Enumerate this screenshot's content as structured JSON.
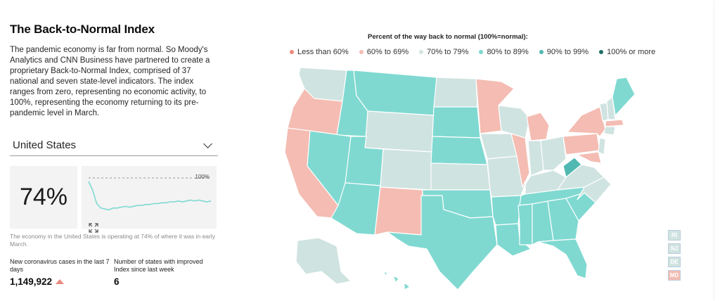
{
  "title": "The Back-to-Normal Index",
  "description": "The pandemic economy is far from normal. So Moody's Analytics and CNN Business have partnered to create a proprietary Back-to-Normal Index, comprised of 37 national and seven state-level indicators. The index ranges from zero, representing no economic activity, to 100%, representing the economy returning to its pre-pandemic level in March.",
  "selector": {
    "value": "United States",
    "icon": "chevron-down-icon"
  },
  "index": {
    "percent": "74%",
    "spark_ref_label": "100%",
    "spark_series": [
      96,
      86,
      71,
      66,
      65,
      64,
      66,
      66,
      67,
      68,
      67,
      68,
      69,
      69,
      70,
      70,
      71,
      71,
      72,
      72,
      73,
      73,
      74,
      73,
      74,
      75,
      74,
      75,
      74,
      73,
      74
    ],
    "expand_icon": "expand-icon"
  },
  "caption": "The economy in the United States is operating at 74% of where it was in early March.",
  "metrics": {
    "cases_label": "New coronavirus cases in the last 7 days",
    "cases_value": "1,149,922",
    "cases_trend_icon": "triangle-up-icon",
    "improved_label": "Number of states with improved Index since last week",
    "improved_value": "6"
  },
  "map": {
    "title": "Percent of the way back to normal (100%=normal):",
    "legend": [
      {
        "label": "Less than 60%",
        "color": "#ef8a7b"
      },
      {
        "label": "60% to 69%",
        "color": "#f4bcb2"
      },
      {
        "label": "70% to 79%",
        "color": "#cfe3e0"
      },
      {
        "label": "80% to 89%",
        "color": "#7fd9d1"
      },
      {
        "label": "90% to 99%",
        "color": "#4fb9b1"
      },
      {
        "label": "100% or more",
        "color": "#1f6f68"
      }
    ],
    "small_states": [
      {
        "label": "RI",
        "color": "#cfe3e0"
      },
      {
        "label": "NJ",
        "color": "#cfe3e0"
      },
      {
        "label": "DE",
        "color": "#cfe3e0"
      },
      {
        "label": "MD",
        "color": "#f4bcb2"
      }
    ]
  }
}
